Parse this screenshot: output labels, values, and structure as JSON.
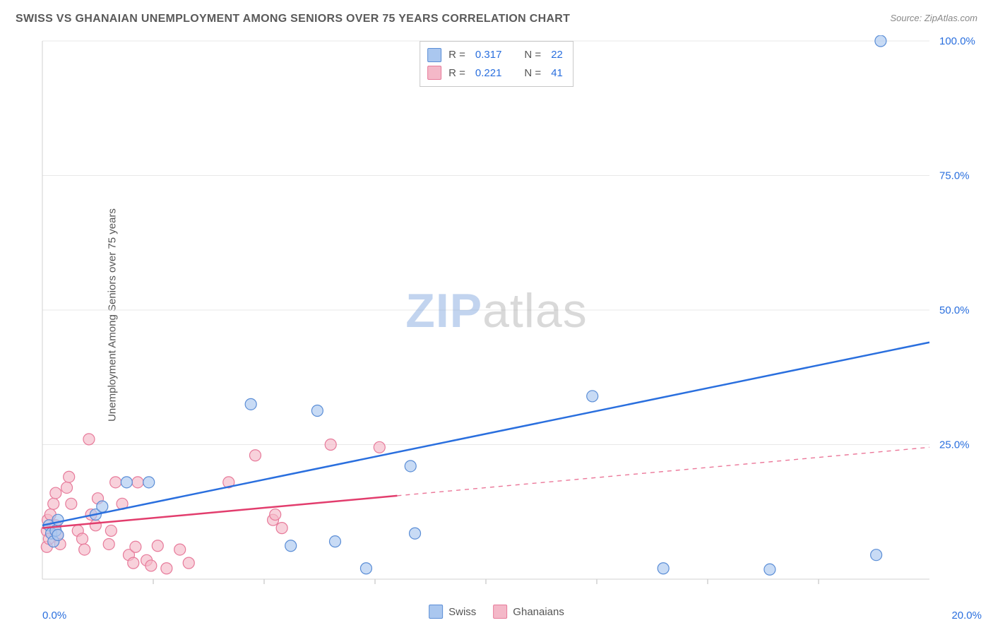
{
  "title": "SWISS VS GHANAIAN UNEMPLOYMENT AMONG SENIORS OVER 75 YEARS CORRELATION CHART",
  "source": "Source: ZipAtlas.com",
  "ylabel": "Unemployment Among Seniors over 75 years",
  "watermark": {
    "zip": "ZIP",
    "atlas": "atlas"
  },
  "chart": {
    "type": "scatter",
    "xlim": [
      0,
      20
    ],
    "ylim": [
      0,
      100
    ],
    "xticks": [
      0,
      20
    ],
    "xtick_labels": [
      "0.0%",
      "20.0%"
    ],
    "yticks": [
      25,
      50,
      75,
      100
    ],
    "ytick_labels": [
      "25.0%",
      "50.0%",
      "75.0%",
      "100.0%"
    ],
    "minor_xticks": [
      2.5,
      5.0,
      7.5,
      10.0,
      12.5,
      15.0,
      17.5
    ],
    "background_color": "#ffffff",
    "grid_color": "#e8e8e8",
    "axis_color": "#d0d0d0",
    "tick_font_color": "#2a6fde",
    "label_font_color": "#555555",
    "title_font_color": "#5a5a5a",
    "title_fontsize": 16,
    "label_fontsize": 15,
    "tick_fontsize": 15,
    "marker_radius": 8,
    "marker_opacity": 0.65,
    "line_width": 2.5,
    "series": {
      "swiss": {
        "label": "Swiss",
        "R": "0.317",
        "N": "22",
        "fill": "#aac7ef",
        "stroke": "#5a8dd6",
        "line_color": "#2a6fde",
        "trend_solid": {
          "x1": 0,
          "y1": 10,
          "x2": 20,
          "y2": 44
        },
        "points": [
          [
            0.15,
            10
          ],
          [
            0.2,
            8.5
          ],
          [
            0.25,
            7
          ],
          [
            0.3,
            9
          ],
          [
            0.35,
            11
          ],
          [
            0.35,
            8.2
          ],
          [
            1.2,
            12
          ],
          [
            1.35,
            13.5
          ],
          [
            1.9,
            18
          ],
          [
            2.4,
            18
          ],
          [
            4.7,
            32.5
          ],
          [
            6.2,
            31.3
          ],
          [
            5.6,
            6.2
          ],
          [
            6.6,
            7.0
          ],
          [
            7.3,
            2.0
          ],
          [
            8.3,
            21
          ],
          [
            8.4,
            8.5
          ],
          [
            12.4,
            34
          ],
          [
            14.0,
            2.0
          ],
          [
            16.4,
            1.8
          ],
          [
            18.8,
            4.5
          ],
          [
            18.9,
            100
          ]
        ]
      },
      "ghanaian": {
        "label": "Ghanaians",
        "R": "0.221",
        "N": "41",
        "fill": "#f4b8c8",
        "stroke": "#e77a9a",
        "line_color": "#e23d6d",
        "trend_solid": {
          "x1": 0,
          "y1": 9.5,
          "x2": 8,
          "y2": 15.5
        },
        "trend_dashed": {
          "x1": 8,
          "y1": 15.5,
          "x2": 20,
          "y2": 24.5
        },
        "points": [
          [
            0.1,
            6
          ],
          [
            0.1,
            9
          ],
          [
            0.12,
            11
          ],
          [
            0.15,
            7.5
          ],
          [
            0.18,
            12
          ],
          [
            0.25,
            14
          ],
          [
            0.3,
            16
          ],
          [
            0.3,
            10
          ],
          [
            0.35,
            8.2
          ],
          [
            0.4,
            6.5
          ],
          [
            0.55,
            17
          ],
          [
            0.6,
            19
          ],
          [
            0.65,
            14
          ],
          [
            0.8,
            9
          ],
          [
            0.9,
            7.5
          ],
          [
            0.95,
            5.5
          ],
          [
            1.05,
            26
          ],
          [
            1.1,
            12
          ],
          [
            1.2,
            10
          ],
          [
            1.25,
            15
          ],
          [
            1.5,
            6.5
          ],
          [
            1.55,
            9
          ],
          [
            1.65,
            18
          ],
          [
            1.8,
            14
          ],
          [
            1.95,
            4.5
          ],
          [
            2.05,
            3.0
          ],
          [
            2.1,
            6.0
          ],
          [
            2.15,
            18
          ],
          [
            2.35,
            3.5
          ],
          [
            2.45,
            2.5
          ],
          [
            2.6,
            6.2
          ],
          [
            2.8,
            2.0
          ],
          [
            3.1,
            5.5
          ],
          [
            3.3,
            3.0
          ],
          [
            4.2,
            18
          ],
          [
            4.8,
            23
          ],
          [
            5.2,
            11
          ],
          [
            5.25,
            12
          ],
          [
            5.4,
            9.5
          ],
          [
            6.5,
            25
          ],
          [
            7.6,
            24.5
          ]
        ]
      }
    }
  },
  "stats_box": {
    "rows": [
      {
        "swatch_fill": "#aac7ef",
        "swatch_stroke": "#5a8dd6",
        "labelR": "R =",
        "valR": "0.317",
        "labelN": "N =",
        "valN": "22"
      },
      {
        "swatch_fill": "#f4b8c8",
        "swatch_stroke": "#e77a9a",
        "labelR": "R =",
        "valR": "0.221",
        "labelN": "N =",
        "valN": "41"
      }
    ]
  },
  "legend_bottom": [
    {
      "swatch_fill": "#aac7ef",
      "swatch_stroke": "#5a8dd6",
      "label": "Swiss"
    },
    {
      "swatch_fill": "#f4b8c8",
      "swatch_stroke": "#e77a9a",
      "label": "Ghanaians"
    }
  ]
}
